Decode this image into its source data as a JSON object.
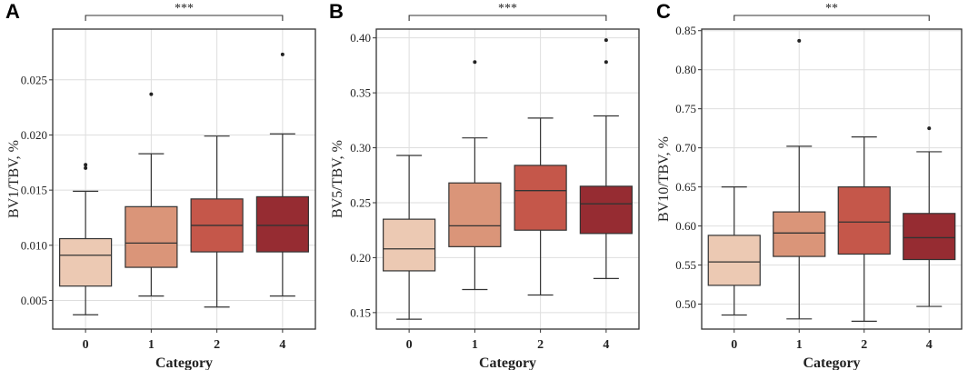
{
  "chart_data": [
    {
      "type": "box",
      "panel_label": "A",
      "xlabel": "Category",
      "ylabel": "BV1/TBV, %",
      "categories": [
        "0",
        "1",
        "2",
        "4"
      ],
      "ylim": [
        0.0024,
        0.0296
      ],
      "yticks": [
        0.005,
        0.01,
        0.015,
        0.02,
        0.025
      ],
      "ytick_labels": [
        "0.005",
        "0.010",
        "0.015",
        "0.020",
        "0.025"
      ],
      "colors": [
        "#ecc9b3",
        "#da9579",
        "#c5574a",
        "#962c32"
      ],
      "significance": {
        "from": "0",
        "to": "4",
        "label": "***"
      },
      "boxes": [
        {
          "category": "0",
          "whisker_low": 0.0037,
          "q1": 0.0063,
          "median": 0.0091,
          "q3": 0.0106,
          "whisker_high": 0.0149,
          "outliers": [
            0.017,
            0.0173
          ]
        },
        {
          "category": "1",
          "whisker_low": 0.0054,
          "q1": 0.008,
          "median": 0.0102,
          "q3": 0.0135,
          "whisker_high": 0.0183,
          "outliers": [
            0.0237
          ]
        },
        {
          "category": "2",
          "whisker_low": 0.0044,
          "q1": 0.0094,
          "median": 0.0118,
          "q3": 0.0142,
          "whisker_high": 0.0199,
          "outliers": []
        },
        {
          "category": "4",
          "whisker_low": 0.0054,
          "q1": 0.0094,
          "median": 0.0118,
          "q3": 0.0144,
          "whisker_high": 0.0201,
          "outliers": [
            0.0273
          ]
        }
      ]
    },
    {
      "type": "box",
      "panel_label": "B",
      "xlabel": "Category",
      "ylabel": "BV5/TBV, %",
      "categories": [
        "0",
        "1",
        "2",
        "4"
      ],
      "ylim": [
        0.135,
        0.408
      ],
      "yticks": [
        0.15,
        0.2,
        0.25,
        0.3,
        0.35,
        0.4
      ],
      "ytick_labels": [
        "0.15",
        "0.20",
        "0.25",
        "0.30",
        "0.35",
        "0.40"
      ],
      "colors": [
        "#ecc9b3",
        "#da9579",
        "#c5574a",
        "#962c32"
      ],
      "significance": {
        "from": "0",
        "to": "4",
        "label": "***"
      },
      "boxes": [
        {
          "category": "0",
          "whisker_low": 0.144,
          "q1": 0.188,
          "median": 0.208,
          "q3": 0.235,
          "whisker_high": 0.293,
          "outliers": []
        },
        {
          "category": "1",
          "whisker_low": 0.171,
          "q1": 0.21,
          "median": 0.229,
          "q3": 0.268,
          "whisker_high": 0.309,
          "outliers": [
            0.378
          ]
        },
        {
          "category": "2",
          "whisker_low": 0.166,
          "q1": 0.225,
          "median": 0.261,
          "q3": 0.284,
          "whisker_high": 0.327,
          "outliers": []
        },
        {
          "category": "4",
          "whisker_low": 0.181,
          "q1": 0.222,
          "median": 0.249,
          "q3": 0.265,
          "whisker_high": 0.329,
          "outliers": [
            0.378,
            0.398
          ]
        }
      ]
    },
    {
      "type": "box",
      "panel_label": "C",
      "xlabel": "Category",
      "ylabel": "BV10/TBV, %",
      "categories": [
        "0",
        "1",
        "2",
        "4"
      ],
      "ylim": [
        0.468,
        0.852
      ],
      "yticks": [
        0.5,
        0.55,
        0.6,
        0.65,
        0.7,
        0.75,
        0.8,
        0.85
      ],
      "ytick_labels": [
        "0.50",
        "0.55",
        "0.60",
        "0.65",
        "0.70",
        "0.75",
        "0.80",
        "0.85"
      ],
      "colors": [
        "#ecc9b3",
        "#da9579",
        "#c5574a",
        "#962c32"
      ],
      "significance": {
        "from": "0",
        "to": "4",
        "label": "**"
      },
      "boxes": [
        {
          "category": "0",
          "whisker_low": 0.486,
          "q1": 0.524,
          "median": 0.554,
          "q3": 0.588,
          "whisker_high": 0.65,
          "outliers": []
        },
        {
          "category": "1",
          "whisker_low": 0.481,
          "q1": 0.561,
          "median": 0.591,
          "q3": 0.618,
          "whisker_high": 0.702,
          "outliers": [
            0.837
          ]
        },
        {
          "category": "2",
          "whisker_low": 0.478,
          "q1": 0.564,
          "median": 0.605,
          "q3": 0.65,
          "whisker_high": 0.714,
          "outliers": []
        },
        {
          "category": "4",
          "whisker_low": 0.497,
          "q1": 0.557,
          "median": 0.585,
          "q3": 0.616,
          "whisker_high": 0.695,
          "outliers": [
            0.725
          ]
        }
      ]
    }
  ]
}
